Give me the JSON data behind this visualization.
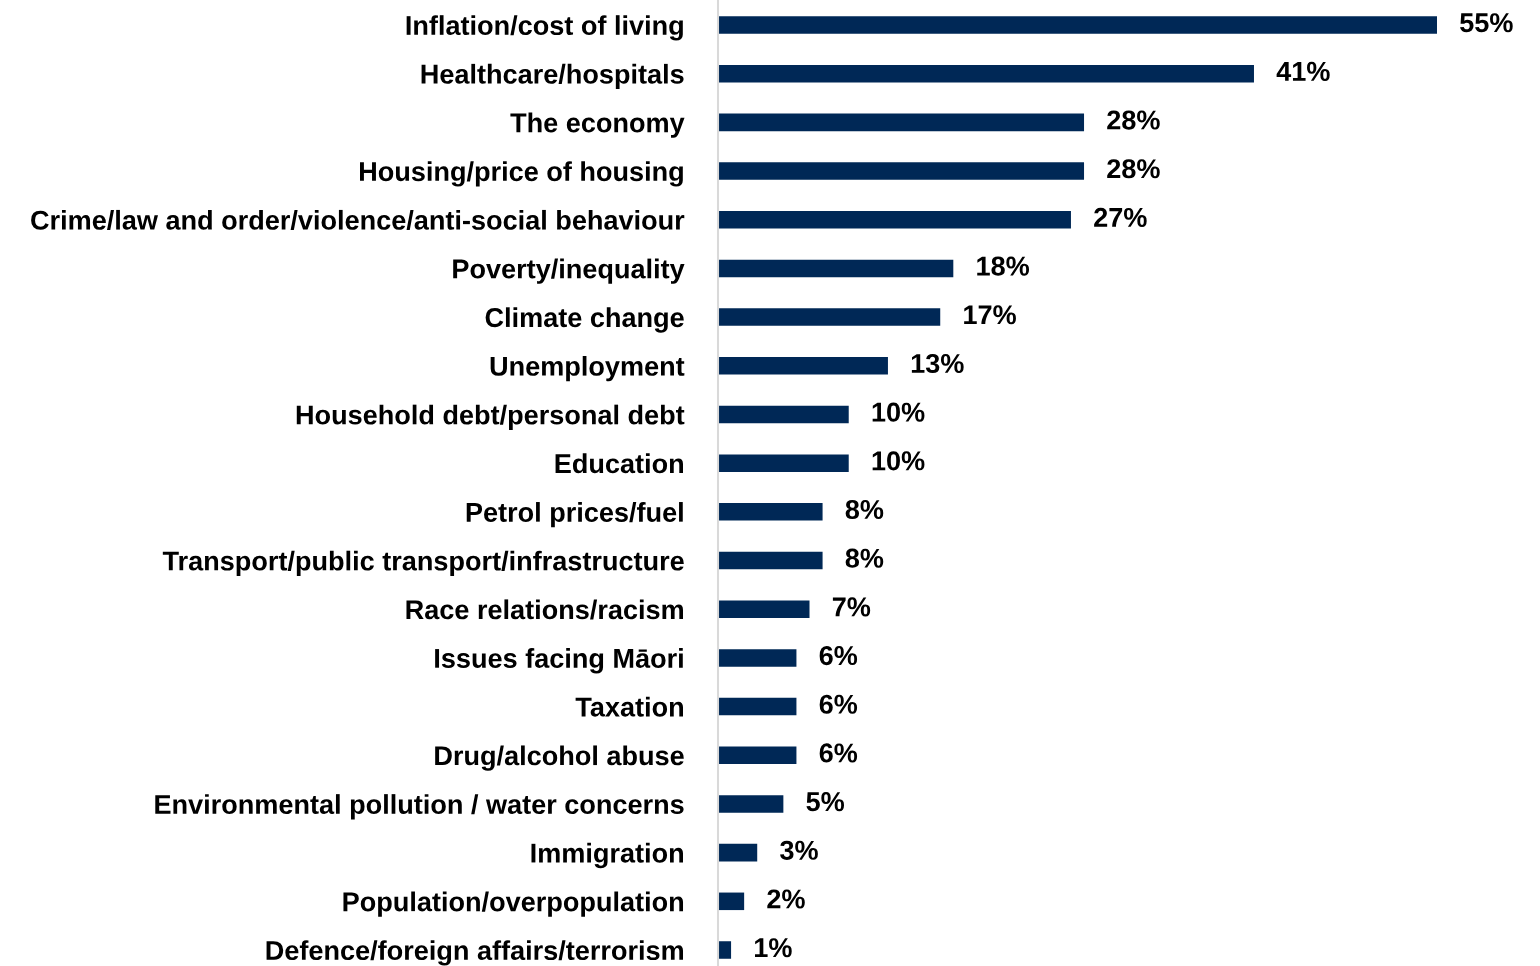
{
  "chart_data": {
    "type": "bar",
    "orientation": "horizontal",
    "categories": [
      "Inflation/cost of living",
      "Healthcare/hospitals",
      "The economy",
      "Housing/price of housing",
      "Crime/law and order/violence/anti-social behaviour",
      "Poverty/inequality",
      "Climate change",
      "Unemployment",
      "Household debt/personal debt",
      "Education",
      "Petrol prices/fuel",
      "Transport/public transport/infrastructure",
      "Race relations/racism",
      "Issues facing Māori",
      "Taxation",
      "Drug/alcohol abuse",
      "Environmental pollution / water concerns",
      "Immigration",
      "Population/overpopulation",
      "Defence/foreign affairs/terrorism"
    ],
    "values": [
      55,
      41,
      28,
      28,
      27,
      18,
      17,
      13,
      10,
      10,
      8,
      8,
      7,
      6,
      6,
      6,
      5,
      3,
      2,
      1
    ],
    "value_labels": [
      "55%",
      "41%",
      "28%",
      "28%",
      "27%",
      "18%",
      "17%",
      "13%",
      "10%",
      "10%",
      "8%",
      "8%",
      "7%",
      "6%",
      "6%",
      "6%",
      "5%",
      "3%",
      "2%",
      "1%"
    ],
    "color": "#002856",
    "grid": false,
    "legend": false
  }
}
